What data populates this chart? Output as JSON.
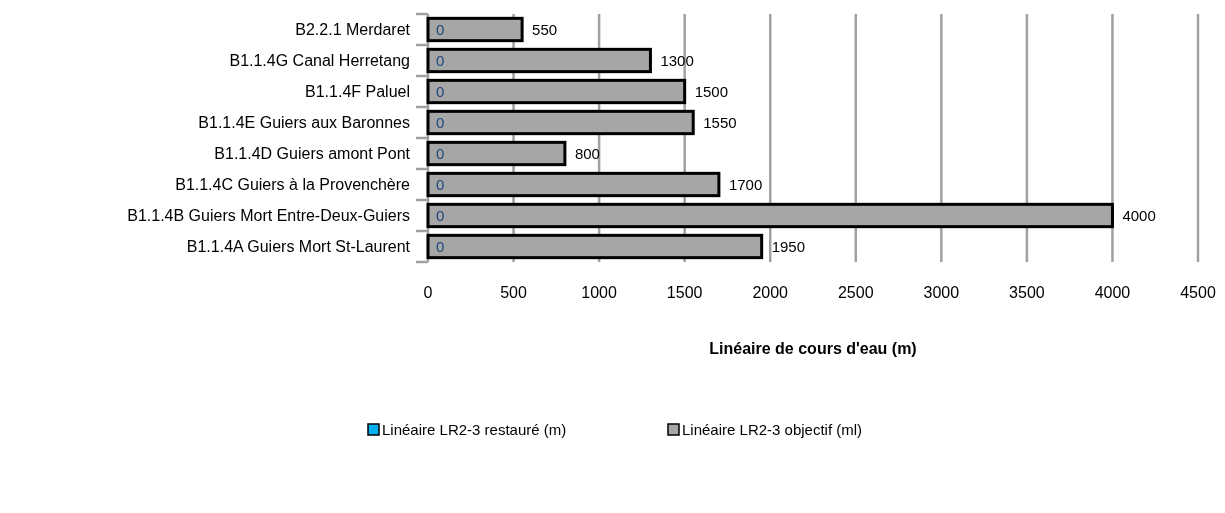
{
  "chart_data": {
    "type": "bar",
    "orientation": "horizontal",
    "xlabel": "Linéaire de cours d'eau (m)",
    "categories": [
      "B2.2.1 Merdaret",
      "B1.1.4G Canal Herretang",
      "B1.1.4F Paluel",
      "B1.1.4E Guiers aux Baronnes",
      "B1.1.4D Guiers amont  Pont",
      "B1.1.4C Guiers à la Provenchère",
      "B1.1.4B Guiers Mort Entre-Deux-Guiers",
      "B1.1.4A Guiers Mort St-Laurent"
    ],
    "series": [
      {
        "name": "Linéaire LR2-3 restauré (m)",
        "color": "#00b0f0",
        "values": [
          0,
          0,
          0,
          0,
          0,
          0,
          0,
          0
        ]
      },
      {
        "name": "Linéaire LR2-3 objectif (ml)",
        "color": "#a6a6a6",
        "values": [
          550,
          1300,
          1500,
          1550,
          800,
          1700,
          4000,
          1950
        ]
      }
    ],
    "xlim": [
      0,
      4500
    ],
    "xticks": [
      0,
      500,
      1000,
      1500,
      2000,
      2500,
      3000,
      3500,
      4000,
      4500
    ],
    "grid": "x",
    "legend": "bottom",
    "data_labels": true
  }
}
